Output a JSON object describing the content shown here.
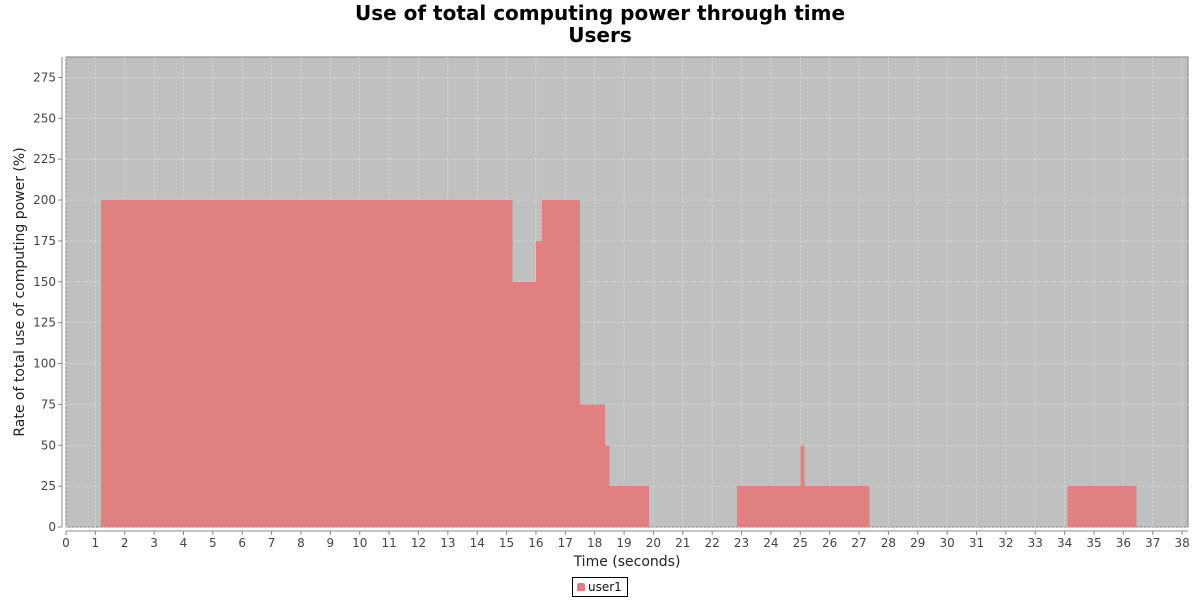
{
  "chart_data": {
    "type": "area",
    "title": "Use of total computing power through time",
    "subtitle": "Users",
    "xlabel": "Time (seconds)",
    "ylabel": "Rate of total use of computing power (%)",
    "xlim": [
      0,
      38.2
    ],
    "ylim": [
      0,
      287.5
    ],
    "xticks": [
      0,
      1,
      2,
      3,
      4,
      5,
      6,
      7,
      8,
      9,
      10,
      11,
      12,
      13,
      14,
      15,
      16,
      17,
      18,
      19,
      20,
      21,
      22,
      23,
      24,
      25,
      26,
      27,
      28,
      29,
      30,
      31,
      32,
      33,
      34,
      35,
      36,
      37,
      38
    ],
    "yticks": [
      0,
      25,
      50,
      75,
      100,
      125,
      150,
      175,
      200,
      225,
      250,
      275
    ],
    "grid": true,
    "legend_position": "bottom-center",
    "background_color": "#c0c0c0",
    "series": [
      {
        "name": "user1",
        "color": "#e08080",
        "step_points": [
          [
            0,
            0
          ],
          [
            1.2,
            200
          ],
          [
            15.2,
            150
          ],
          [
            16.0,
            175
          ],
          [
            16.2,
            200
          ],
          [
            17.5,
            75
          ],
          [
            18.35,
            50
          ],
          [
            18.5,
            25
          ],
          [
            19.85,
            0
          ],
          [
            22.85,
            25
          ],
          [
            25.0,
            50
          ],
          [
            25.15,
            25
          ],
          [
            27.35,
            0
          ],
          [
            34.1,
            25
          ],
          [
            36.45,
            0
          ]
        ]
      }
    ]
  }
}
